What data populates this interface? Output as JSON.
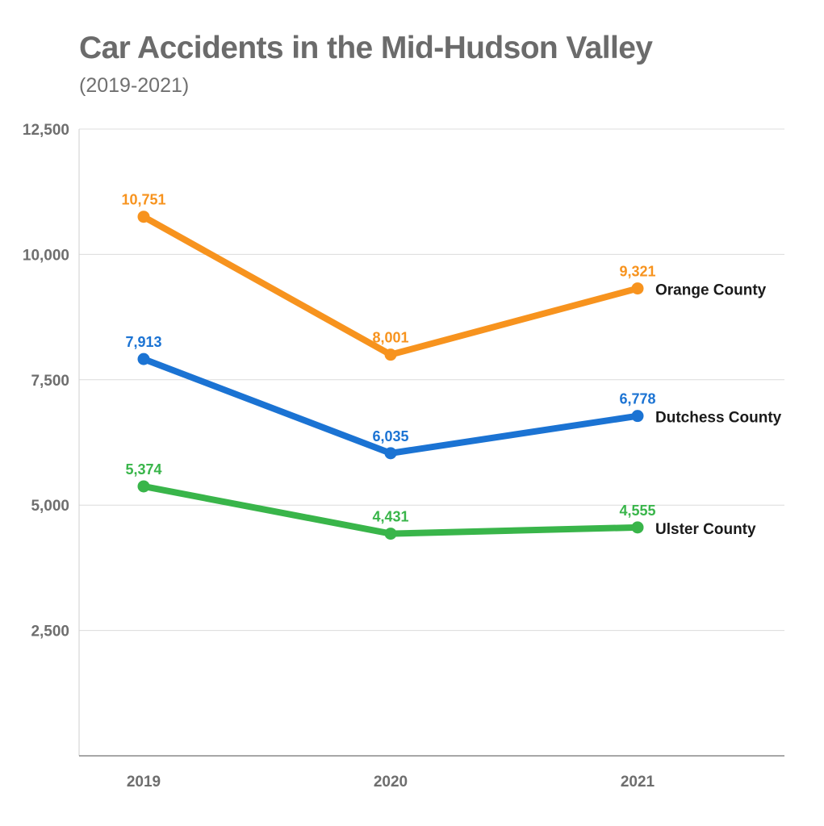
{
  "header": {
    "title": "Car Accidents in the Mid-Hudson Valley",
    "subtitle": "(2019-2021)"
  },
  "chart_data": {
    "type": "line",
    "title": "Car Accidents in the Mid-Hudson Valley",
    "subtitle": "(2019-2021)",
    "xlabel": "",
    "ylabel": "",
    "categories": [
      "2019",
      "2020",
      "2021"
    ],
    "ylim": [
      0,
      12500
    ],
    "yticks": [
      2500,
      5000,
      7500,
      10000,
      12500
    ],
    "ytick_labels": [
      "2,500",
      "5,000",
      "7,500",
      "10,000",
      "12,500"
    ],
    "grid": true,
    "legend": "inline-right",
    "series": [
      {
        "name": "Orange County",
        "color": "#f7931e",
        "values": [
          10751,
          8001,
          9321
        ],
        "labels": [
          "10,751",
          "8,001",
          "9,321"
        ]
      },
      {
        "name": "Dutchess County",
        "color": "#1b73d3",
        "values": [
          7913,
          6035,
          6778
        ],
        "labels": [
          "7,913",
          "6,035",
          "6,778"
        ]
      },
      {
        "name": "Ulster County",
        "color": "#39b54a",
        "values": [
          5374,
          4431,
          4555
        ],
        "labels": [
          "5,374",
          "4,431",
          "4,555"
        ]
      }
    ]
  }
}
